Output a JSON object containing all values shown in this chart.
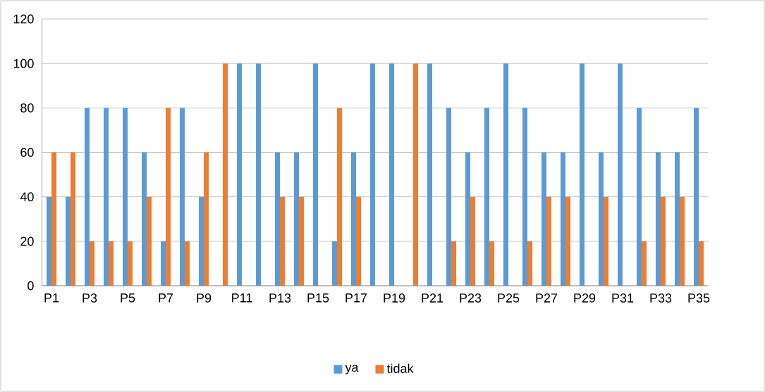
{
  "chart_data": {
    "type": "bar",
    "categories": [
      "P1",
      null,
      "P3",
      null,
      "P5",
      null,
      "P7",
      null,
      "P9",
      null,
      "P11",
      null,
      "P13",
      null,
      "P15",
      null,
      "P17",
      null,
      "P19",
      null,
      "P21",
      null,
      "P23",
      null,
      "P25",
      null,
      "P27",
      null,
      "P29",
      null,
      "P31",
      null,
      "P33",
      null,
      "P35"
    ],
    "series": [
      {
        "name": "ya",
        "color": "#5b9bd5",
        "values": [
          40,
          40,
          80,
          80,
          80,
          60,
          20,
          80,
          40,
          0,
          100,
          100,
          60,
          60,
          100,
          20,
          60,
          100,
          100,
          0,
          100,
          80,
          60,
          80,
          100,
          80,
          60,
          60,
          100,
          60,
          100,
          80,
          60,
          60,
          80
        ]
      },
      {
        "name": "tidak",
        "color": "#ed7d31",
        "values": [
          60,
          60,
          20,
          20,
          20,
          40,
          80,
          20,
          60,
          100,
          0,
          0,
          40,
          40,
          0,
          80,
          40,
          0,
          0,
          100,
          0,
          20,
          40,
          20,
          0,
          20,
          40,
          40,
          0,
          40,
          0,
          20,
          40,
          40,
          20
        ]
      }
    ],
    "ylim": [
      0,
      120
    ],
    "yticks": [
      0,
      20,
      40,
      60,
      80,
      100,
      120
    ],
    "grid": "y",
    "legend": "bottom"
  }
}
